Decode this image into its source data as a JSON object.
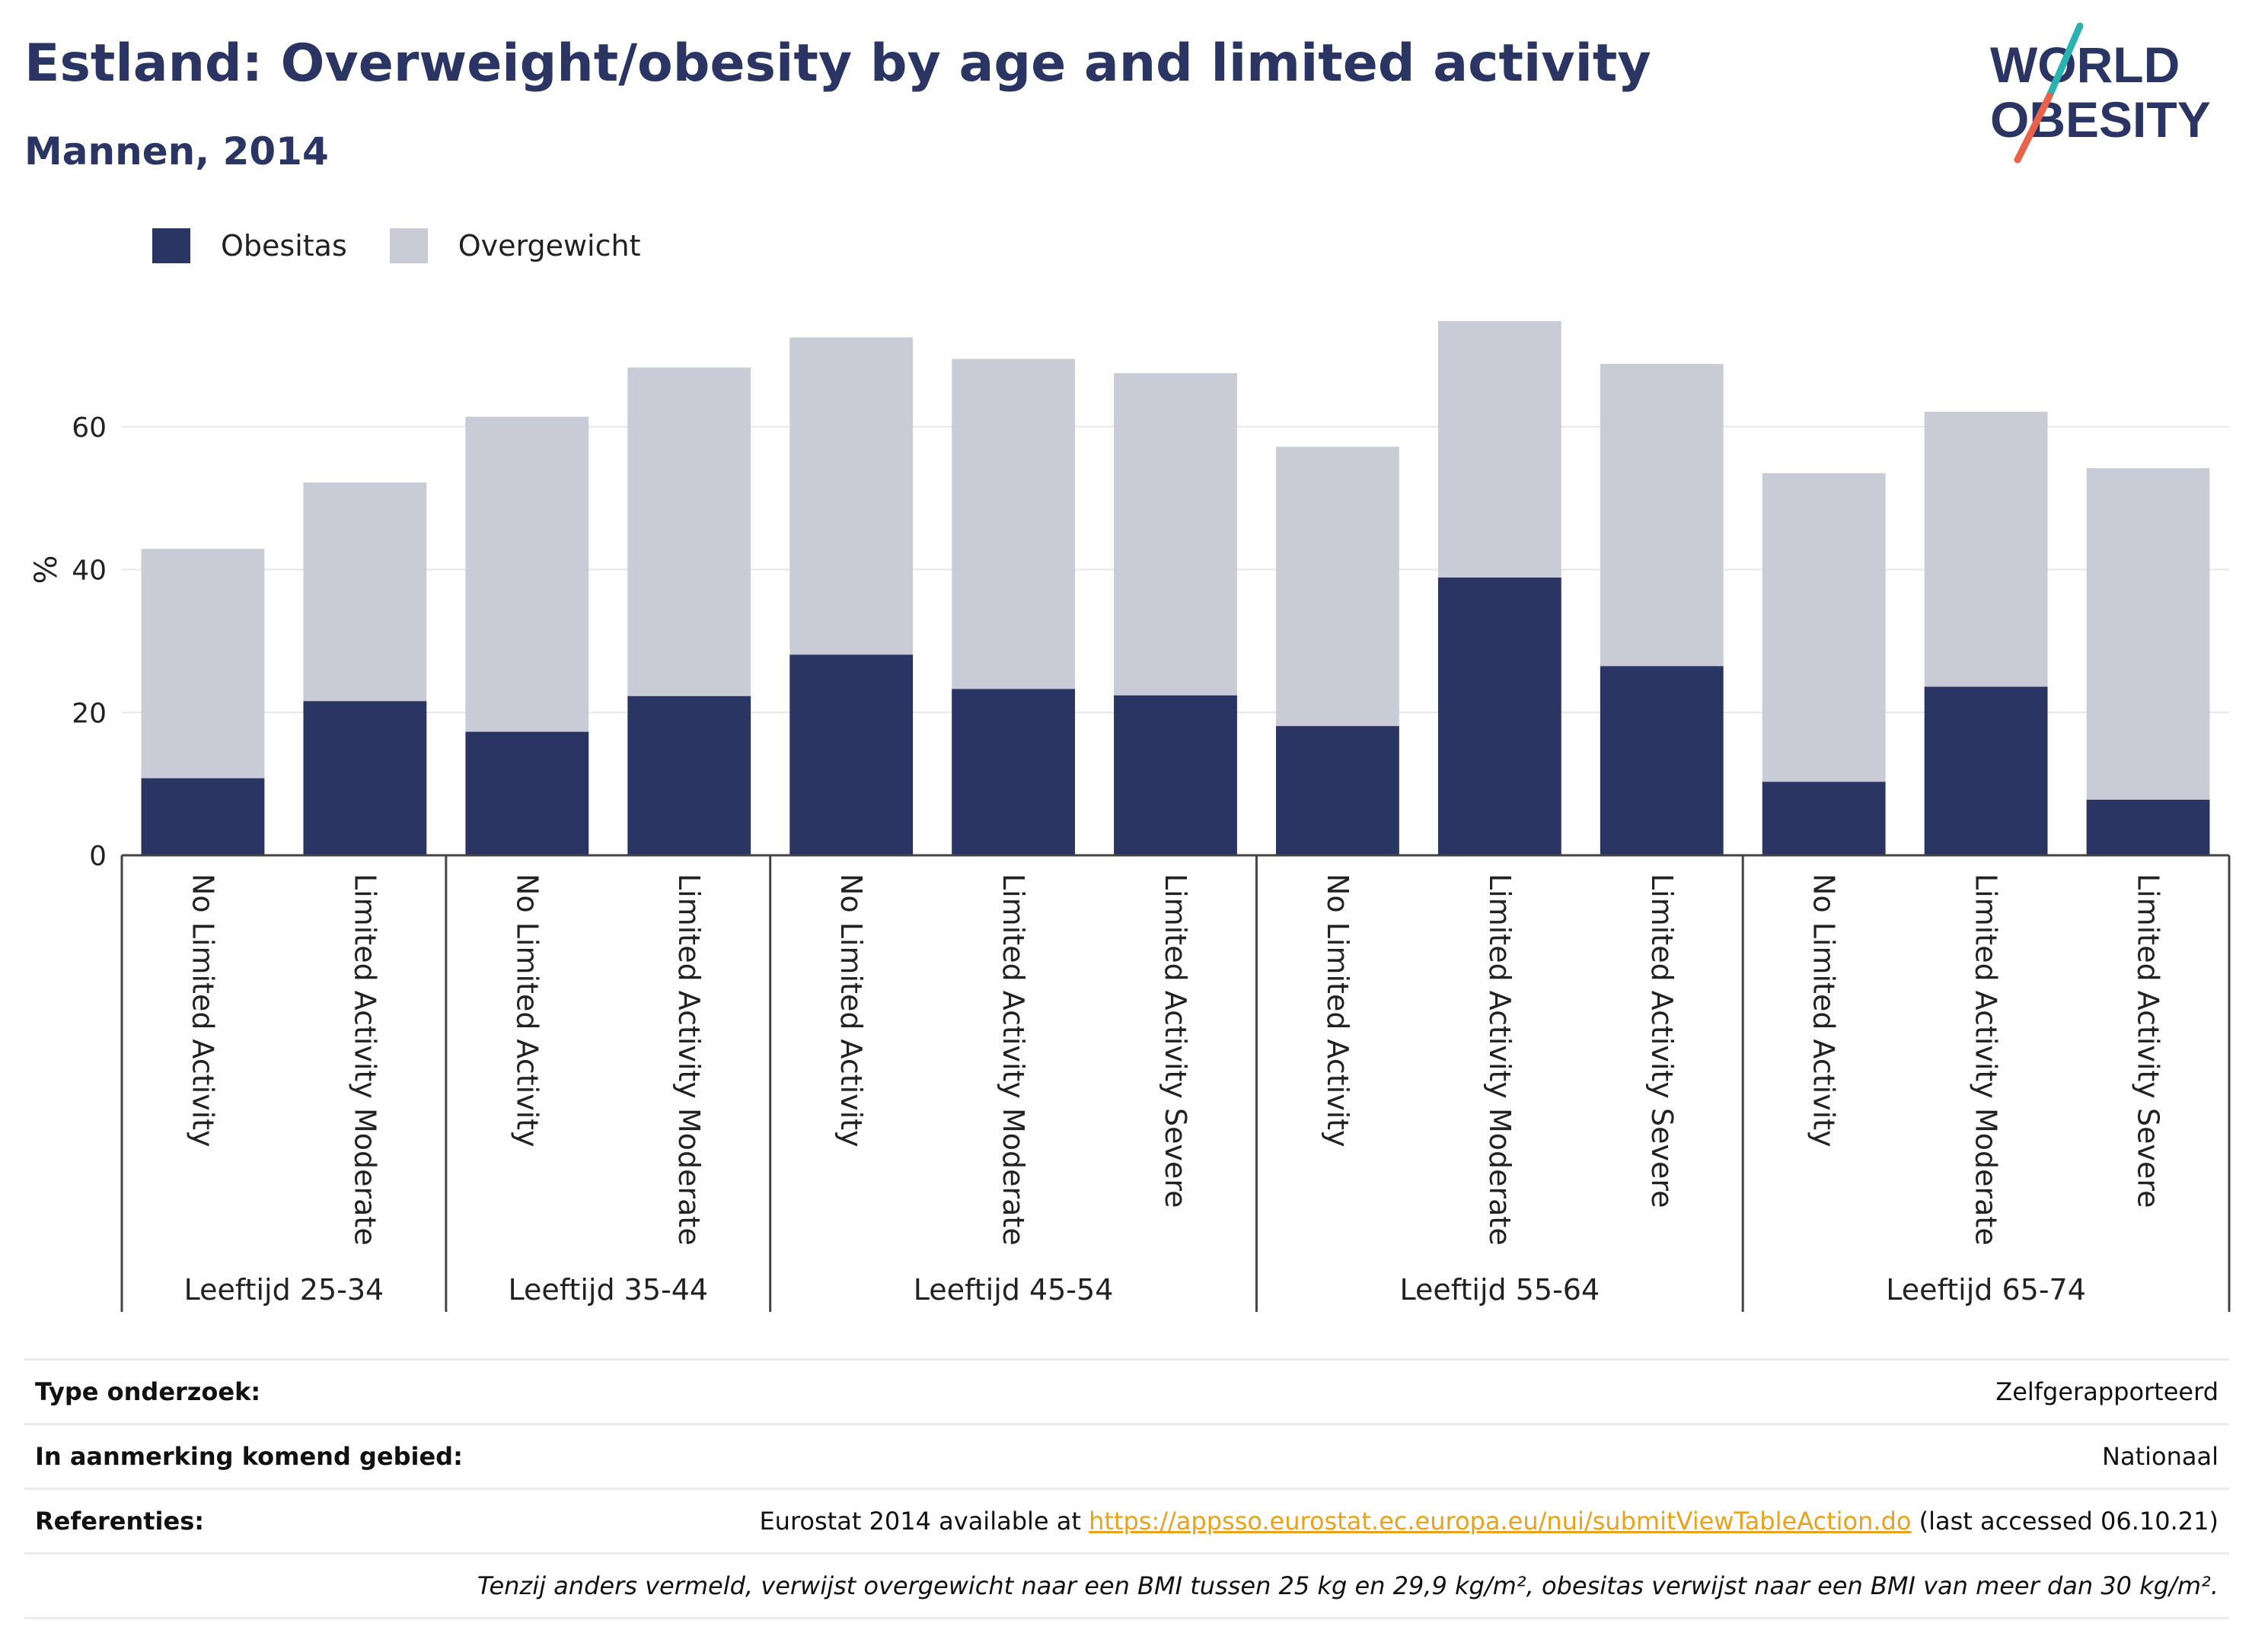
{
  "header": {
    "title": "Estland: Overweight/obesity by age and limited activity",
    "subtitle": "Mannen, 2014",
    "logo_line1": "WORLD",
    "logo_line2": "OBESITY"
  },
  "colors": {
    "obesitas": "#2a3563",
    "overgewicht": "#c9cbd7",
    "grid": "#e6e6ea",
    "axis": "#444444",
    "link": "#e8a21b",
    "logo_slash_top": "#2bb3b1",
    "logo_slash_bottom": "#e8634a"
  },
  "chart_data": {
    "type": "bar",
    "stacked": true,
    "ylabel": "%",
    "ylim": [
      0,
      75
    ],
    "yticks": [
      0,
      20,
      40,
      60
    ],
    "grid": true,
    "legend_position": "top-left",
    "groups": [
      {
        "label": "Leeftijd 25-34",
        "categories": [
          "No Limited Activity",
          "Limited Activity Moderate"
        ]
      },
      {
        "label": "Leeftijd 35-44",
        "categories": [
          "No Limited Activity",
          "Limited Activity Moderate"
        ]
      },
      {
        "label": "Leeftijd 45-54",
        "categories": [
          "No Limited Activity",
          "Limited Activity Moderate",
          "Limited Activity Severe"
        ]
      },
      {
        "label": "Leeftijd 55-64",
        "categories": [
          "No Limited Activity",
          "Limited Activity Moderate",
          "Limited Activity Severe"
        ]
      },
      {
        "label": "Leeftijd 65-74",
        "categories": [
          "No Limited Activity",
          "Limited Activity Moderate",
          "Limited Activity Severe"
        ]
      }
    ],
    "series": [
      {
        "name": "Obesitas",
        "values": [
          10.8,
          21.6,
          17.3,
          22.3,
          28.1,
          23.3,
          22.4,
          18.1,
          38.9,
          26.5,
          10.3,
          23.6,
          7.8
        ]
      },
      {
        "name": "Overgewicht",
        "values": [
          32.1,
          30.6,
          44.1,
          46.0,
          44.4,
          46.2,
          45.1,
          39.1,
          35.9,
          42.3,
          43.2,
          38.5,
          46.4
        ]
      }
    ]
  },
  "info": {
    "type_label": "Type onderzoek:",
    "type_value": "Zelfgerapporteerd",
    "area_label": "In aanmerking komend gebied:",
    "area_value": "Nationaal",
    "ref_label": "Referenties:",
    "ref_prefix": "Eurostat 2014 available at ",
    "ref_link": "https://appsso.eurostat.ec.europa.eu/nui/submitViewTableAction.do",
    "ref_suffix": " (last accessed 06.10.21)",
    "note": "Tenzij anders vermeld, verwijst overgewicht naar een BMI tussen 25 kg en 29,9 kg/m², obesitas verwijst naar een BMI van meer dan 30 kg/m²."
  }
}
